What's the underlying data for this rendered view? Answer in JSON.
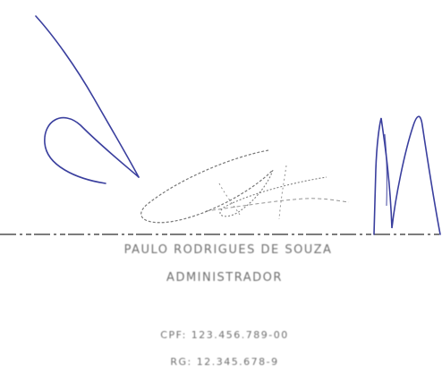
{
  "signatory": {
    "name": "PAULO RODRIGUES DE SOUZA",
    "role": "ADMINISTRADOR",
    "cpf_line": "CPF: 123.456.789-00",
    "rg_line": "RG: 12.345.678-9"
  },
  "signature_image": {
    "ink_color": "#3a3f9e",
    "line_color": "#2a2a2a"
  }
}
